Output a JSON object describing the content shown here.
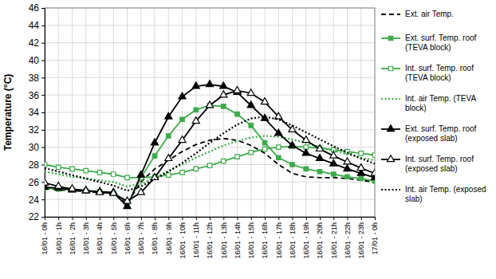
{
  "chart_data": {
    "type": "line",
    "y_label": "Temperature (°C)",
    "categories": [
      "16/01 - 0h",
      "16/01 - 1h",
      "16/01 - 2h",
      "16/01 - 3h",
      "16/01 - 4h",
      "16/01 - 5h",
      "16/01 - 6h",
      "16/01 - 7h",
      "16/01 - 8h",
      "16/01 - 9h",
      "16/01 - 10h",
      "16/01 - 11h",
      "16/01 - 12h",
      "16/01 - 13h",
      "16/01 - 14h",
      "16/01 - 15h",
      "16/01 - 16h",
      "16/01 - 17h",
      "16/01 - 18h",
      "16/01 - 19h",
      "16/01 - 20h",
      "16/01 - 21h",
      "16/01 - 22h",
      "16/01 - 23h",
      "17/01 - 0h"
    ],
    "series": [
      {
        "name": "Ext. air Temp.",
        "color": "#000000",
        "line_style": "dashed",
        "marker": "none",
        "values": [
          25.3,
          25.1,
          25.0,
          24.9,
          24.8,
          24.7,
          23.5,
          26.0,
          27.5,
          28.5,
          29.5,
          30.3,
          30.8,
          31.0,
          30.8,
          30.2,
          29.3,
          28.0,
          27.0,
          26.6,
          26.5,
          26.5,
          26.4,
          26.2,
          26.0
        ]
      },
      {
        "name": "Ext. surf. Temp. roof (TEVA block)",
        "color": "#3cab4a",
        "line_style": "solid",
        "marker": "square",
        "values": [
          25.3,
          25.2,
          25.1,
          25.0,
          24.9,
          24.7,
          23.3,
          26.5,
          29.0,
          31.3,
          33.2,
          34.3,
          34.8,
          34.7,
          33.8,
          32.5,
          30.5,
          28.8,
          28.0,
          27.5,
          27.2,
          26.9,
          26.6,
          26.4,
          26.1
        ]
      },
      {
        "name": "Int. surf. Temp. roof (TEVA block)",
        "color": "#3cab4a",
        "line_style": "solid",
        "marker": "square-open",
        "values": [
          28.0,
          27.7,
          27.5,
          27.3,
          27.1,
          26.9,
          26.5,
          26.5,
          26.6,
          26.8,
          27.1,
          27.5,
          27.9,
          28.4,
          28.9,
          29.4,
          29.8,
          30.0,
          30.1,
          30.0,
          29.9,
          29.7,
          29.5,
          29.3,
          29.1
        ]
      },
      {
        "name": "Int. air Temp. (TEVA block)",
        "color": "#3cab4a",
        "line_style": "dotted",
        "marker": "none",
        "values": [
          27.2,
          26.9,
          26.6,
          26.4,
          26.2,
          26.0,
          25.5,
          25.8,
          26.5,
          27.3,
          28.0,
          28.8,
          29.5,
          30.2,
          30.7,
          31.1,
          31.3,
          31.2,
          30.9,
          30.5,
          30.0,
          29.6,
          29.2,
          28.8,
          28.5
        ]
      },
      {
        "name": "Ext. surf. Temp. roof (exposed slab)",
        "color": "#000000",
        "line_style": "solid",
        "marker": "triangle",
        "values": [
          25.4,
          25.3,
          25.1,
          25.0,
          24.9,
          24.8,
          23.2,
          26.8,
          30.5,
          33.5,
          35.8,
          37.0,
          37.2,
          37.0,
          36.3,
          34.8,
          33.3,
          31.6,
          30.2,
          29.3,
          28.7,
          28.1,
          27.5,
          27.0,
          26.5
        ]
      },
      {
        "name": "Int. surf. Temp. roof (exposed slab)",
        "color": "#000000",
        "line_style": "solid",
        "marker": "triangle-open",
        "values": [
          25.9,
          25.5,
          25.2,
          25.0,
          24.8,
          24.7,
          23.8,
          24.8,
          26.5,
          28.7,
          30.8,
          33.0,
          34.8,
          36.0,
          36.5,
          36.2,
          35.2,
          33.5,
          32.0,
          30.8,
          29.8,
          29.0,
          28.3,
          27.6,
          27.0
        ]
      },
      {
        "name": "Int. air Temp. (exposed slab)",
        "color": "#000000",
        "line_style": "dotted",
        "marker": "none",
        "values": [
          27.6,
          27.2,
          26.8,
          26.4,
          26.0,
          25.6,
          25.0,
          25.5,
          26.3,
          27.2,
          28.2,
          29.3,
          30.5,
          31.6,
          32.6,
          33.3,
          33.5,
          33.2,
          32.5,
          31.7,
          30.9,
          30.1,
          29.4,
          28.7,
          28.1
        ]
      }
    ],
    "ylim": [
      22,
      46
    ],
    "yticks": [
      22,
      24,
      26,
      28,
      30,
      32,
      34,
      36,
      38,
      40,
      42,
      44,
      46
    ],
    "grid": true,
    "legend": "right"
  }
}
